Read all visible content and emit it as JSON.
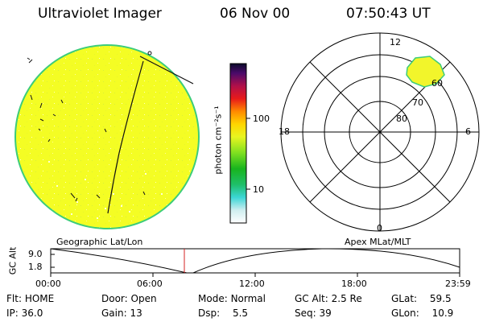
{
  "header": {
    "instrument": "Ultraviolet Imager",
    "date": "06 Nov 00",
    "time": "07:50:43 UT"
  },
  "colorbar": {
    "unit_label": "photon cm⁻²s⁻¹",
    "ticks": [
      "100",
      "10"
    ]
  },
  "polar_plot": {
    "mlt_labels": [
      "12",
      "18",
      "6",
      "0"
    ],
    "mlat_labels": [
      "60",
      "70",
      "80"
    ]
  },
  "timeline": {
    "left_label": "Geographic Lat/Lon",
    "right_label": "Apex MLat/MLT",
    "axis_label": "GC Alt",
    "y_ticks": [
      "9.0",
      "1.8"
    ],
    "x_ticks": [
      "00:00",
      "06:00",
      "12:00",
      "18:00",
      "23:59"
    ],
    "marker_time": "07:50"
  },
  "info": {
    "row1": [
      {
        "key": "Flt:",
        "value": "HOME"
      },
      {
        "key": "Door:",
        "value": "Open"
      },
      {
        "key": "Mode:",
        "value": "Normal"
      },
      {
        "key": "GC Alt:",
        "value": "2.5 Re"
      },
      {
        "key": "GLat:",
        "value": "59.5"
      }
    ],
    "row2": [
      {
        "key": "IP:",
        "value": "36.0"
      },
      {
        "key": "Gain:",
        "value": "13"
      },
      {
        "key": "Dsp:",
        "value": "5.5"
      },
      {
        "key": "Seq:",
        "value": "39"
      },
      {
        "key": "GLon:",
        "value": "10.9"
      }
    ]
  },
  "colors": {
    "image_fill": "#f4fd24",
    "image_edge": "#3ccc7a",
    "marker": "#d42020",
    "blob": "#f2f52b"
  }
}
